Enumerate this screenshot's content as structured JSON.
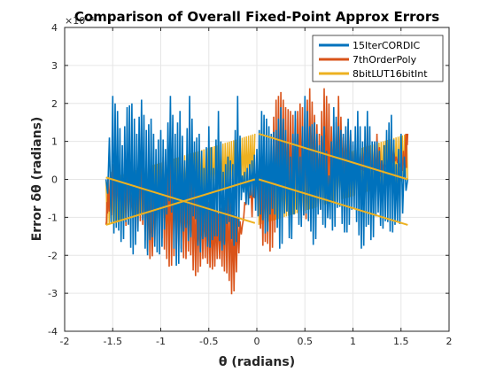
{
  "chart_data": {
    "type": "line",
    "title": "Comparison of Overall Fixed-Point Approx Errors",
    "xlabel": "θ (radians)",
    "ylabel": "Error   δθ (radians)",
    "y_exponent_label": "×10⁻⁴",
    "xlim": [
      -2,
      2
    ],
    "ylim": [
      -4,
      4
    ],
    "x_ticks": [
      -2,
      -1.5,
      -1,
      -0.5,
      0,
      0.5,
      1,
      1.5,
      2
    ],
    "y_ticks": [
      -4,
      -3,
      -2,
      -1,
      0,
      1,
      2,
      3,
      4
    ],
    "x_tick_labels": [
      "-2",
      "-1.5",
      "-1",
      "-0.5",
      "0",
      "0.5",
      "1",
      "1.5",
      "2"
    ],
    "y_tick_labels": [
      "-4",
      "-3",
      "-2",
      "-1",
      "0",
      "1",
      "2",
      "3",
      "4"
    ],
    "grid": true,
    "legend_position": "top-right",
    "series": [
      {
        "name": "15IterCORDIC",
        "color": "#0072BD",
        "x": [
          -1.57,
          -1.5,
          -1.45,
          -1.4,
          -1.35,
          -1.3,
          -1.25,
          -1.2,
          -1.15,
          -1.1,
          -1.05,
          -1.0,
          -0.95,
          -0.9,
          -0.85,
          -0.8,
          -0.75,
          -0.7,
          -0.65,
          -0.6,
          -0.55,
          -0.5,
          -0.45,
          -0.4,
          -0.35,
          -0.3,
          -0.25,
          -0.2,
          -0.15,
          -0.1,
          -0.05,
          0.0,
          0.05,
          0.1,
          0.15,
          0.2,
          0.25,
          0.3,
          0.35,
          0.4,
          0.45,
          0.5,
          0.55,
          0.6,
          0.65,
          0.7,
          0.75,
          0.8,
          0.85,
          0.9,
          0.95,
          1.0,
          1.05,
          1.1,
          1.15,
          1.2,
          1.25,
          1.3,
          1.35,
          1.4,
          1.45,
          1.5,
          1.57
        ],
        "y_upper": [
          0.0,
          2.2,
          1.8,
          0.9,
          1.9,
          2.0,
          1.2,
          2.1,
          1.3,
          1.6,
          0.8,
          1.3,
          0.8,
          2.2,
          1.2,
          1.8,
          0.5,
          2.2,
          1.0,
          1.2,
          0.3,
          1.4,
          0.3,
          1.8,
          0.2,
          0.6,
          0.4,
          2.2,
          0.1,
          0.3,
          0.5,
          0.8,
          1.8,
          1.6,
          1.2,
          1.3,
          1.9,
          1.3,
          0.6,
          1.8,
          0.6,
          2.2,
          1.4,
          1.5,
          0.9,
          1.4,
          0.1,
          1.9,
          1.4,
          1.2,
          1.6,
          1.0,
          1.8,
          1.0,
          1.8,
          1.0,
          1.0,
          0.5,
          1.3,
          1.7,
          0.4,
          1.2,
          0.0
        ],
        "y_lower": [
          0.0,
          -1.5,
          -1.2,
          -1.8,
          -0.9,
          -2.1,
          -1.6,
          -0.7,
          -2.2,
          -1.4,
          -1.9,
          -2.0,
          -1.1,
          -0.4,
          -2.3,
          -2.2,
          -1.1,
          -1.8,
          -0.7,
          -2.1,
          -1.4,
          -1.9,
          -1.5,
          -1.5,
          -2.0,
          -0.9,
          -1.8,
          -1.6,
          -0.2,
          -0.8,
          -0.3,
          -1.0,
          -0.9,
          -1.6,
          -0.7,
          -1.0,
          -2.1,
          -0.5,
          -1.9,
          -0.6,
          -1.4,
          -0.8,
          -1.2,
          -1.9,
          -0.6,
          -1.4,
          -0.9,
          -1.5,
          -0.5,
          -1.4,
          -1.4,
          -0.6,
          -1.3,
          -2.0,
          -1.0,
          -1.8,
          -0.7,
          -1.4,
          -1.0,
          -1.5,
          -1.1,
          -1.2,
          0.0
        ]
      },
      {
        "name": "7thOrderPoly",
        "color": "#D95319",
        "x": [
          -1.57,
          -1.55,
          -1.5,
          -1.45,
          -1.4,
          -1.35,
          -1.3,
          -1.25,
          -1.2,
          -1.15,
          -1.1,
          -1.05,
          -1.0,
          -0.95,
          -0.9,
          -0.85,
          -0.8,
          -0.75,
          -0.7,
          -0.65,
          -0.6,
          -0.55,
          -0.5,
          -0.45,
          -0.4,
          -0.35,
          -0.3,
          -0.25,
          -0.2,
          -0.15,
          -0.1,
          -0.05,
          0.0,
          0.05,
          0.1,
          0.15,
          0.2,
          0.25,
          0.3,
          0.35,
          0.4,
          0.45,
          0.5,
          0.55,
          0.6,
          0.65,
          0.7,
          0.75,
          0.8,
          0.85,
          0.9,
          0.95,
          1.0,
          1.05,
          1.1,
          1.15,
          1.2,
          1.25,
          1.3,
          1.35,
          1.4,
          1.45,
          1.5,
          1.55,
          1.57
        ],
        "y_upper": [
          -1.2,
          0.0,
          0.4,
          0.0,
          -0.2,
          0.8,
          -0.4,
          0.4,
          0.7,
          0.3,
          -0.4,
          0.1,
          0.8,
          0.4,
          0.7,
          0.3,
          -0.2,
          0.2,
          0.0,
          -0.2,
          -0.5,
          -0.3,
          -0.6,
          -0.8,
          -0.9,
          -0.6,
          -0.2,
          -0.9,
          -1.0,
          -1.2,
          0.0,
          -1.0,
          0.0,
          0.2,
          1.0,
          1.2,
          2.1,
          2.3,
          1.9,
          1.8,
          1.6,
          2.0,
          1.8,
          2.4,
          1.7,
          1.2,
          2.4,
          2.0,
          0.8,
          2.2,
          1.1,
          1.5,
          0.9,
          0.8,
          0.7,
          1.4,
          0.4,
          1.2,
          0.5,
          0.3,
          0.9,
          0.6,
          0.3,
          1.2,
          1.2
        ],
        "y_lower": [
          -1.2,
          -0.8,
          -1.0,
          -0.6,
          -1.0,
          -1.3,
          -0.8,
          -1.4,
          -1.0,
          -1.8,
          -2.2,
          -1.5,
          -1.4,
          -2.0,
          -2.4,
          -1.9,
          -1.7,
          -2.2,
          -1.8,
          -2.6,
          -2.4,
          -2.0,
          -2.3,
          -2.4,
          -2.0,
          -2.4,
          -2.5,
          -3.2,
          -2.2,
          -1.2,
          -0.5,
          0.0,
          0.2,
          -1.8,
          -1.6,
          -2.0,
          -1.2,
          -0.4,
          -0.8,
          -1.0,
          -0.6,
          -0.2,
          -1.2,
          -0.6,
          -0.2,
          -0.9,
          -0.5,
          -0.7,
          0.3,
          -0.4,
          0.2,
          -0.3,
          -0.2,
          0.1,
          0.3,
          0.0,
          0.4,
          -0.3,
          0.2,
          0.4,
          0.4,
          0.5,
          0.3,
          0.0,
          1.2
        ]
      },
      {
        "name": "8bitLUT16bitInt",
        "color": "#EDB120",
        "x": [
          -1.57,
          -0.05,
          0.0,
          1.57
        ],
        "y_upper": [
          0.0,
          -1.2,
          0.0,
          -1.2
        ],
        "y_lower": [
          -1.2,
          -0.0,
          -1.2,
          0.0
        ],
        "band": {
          "x_start": -1.57,
          "x_end": 1.57,
          "segments": [
            [
              -1.57,
              0.05,
              -1.15
            ],
            [
              -0.03,
              -1.2,
              0.0
            ],
            [
              0.0,
              1.2,
              1.57
            ],
            [
              1.57,
              0.0,
              0.0
            ]
          ]
        }
      }
    ]
  }
}
